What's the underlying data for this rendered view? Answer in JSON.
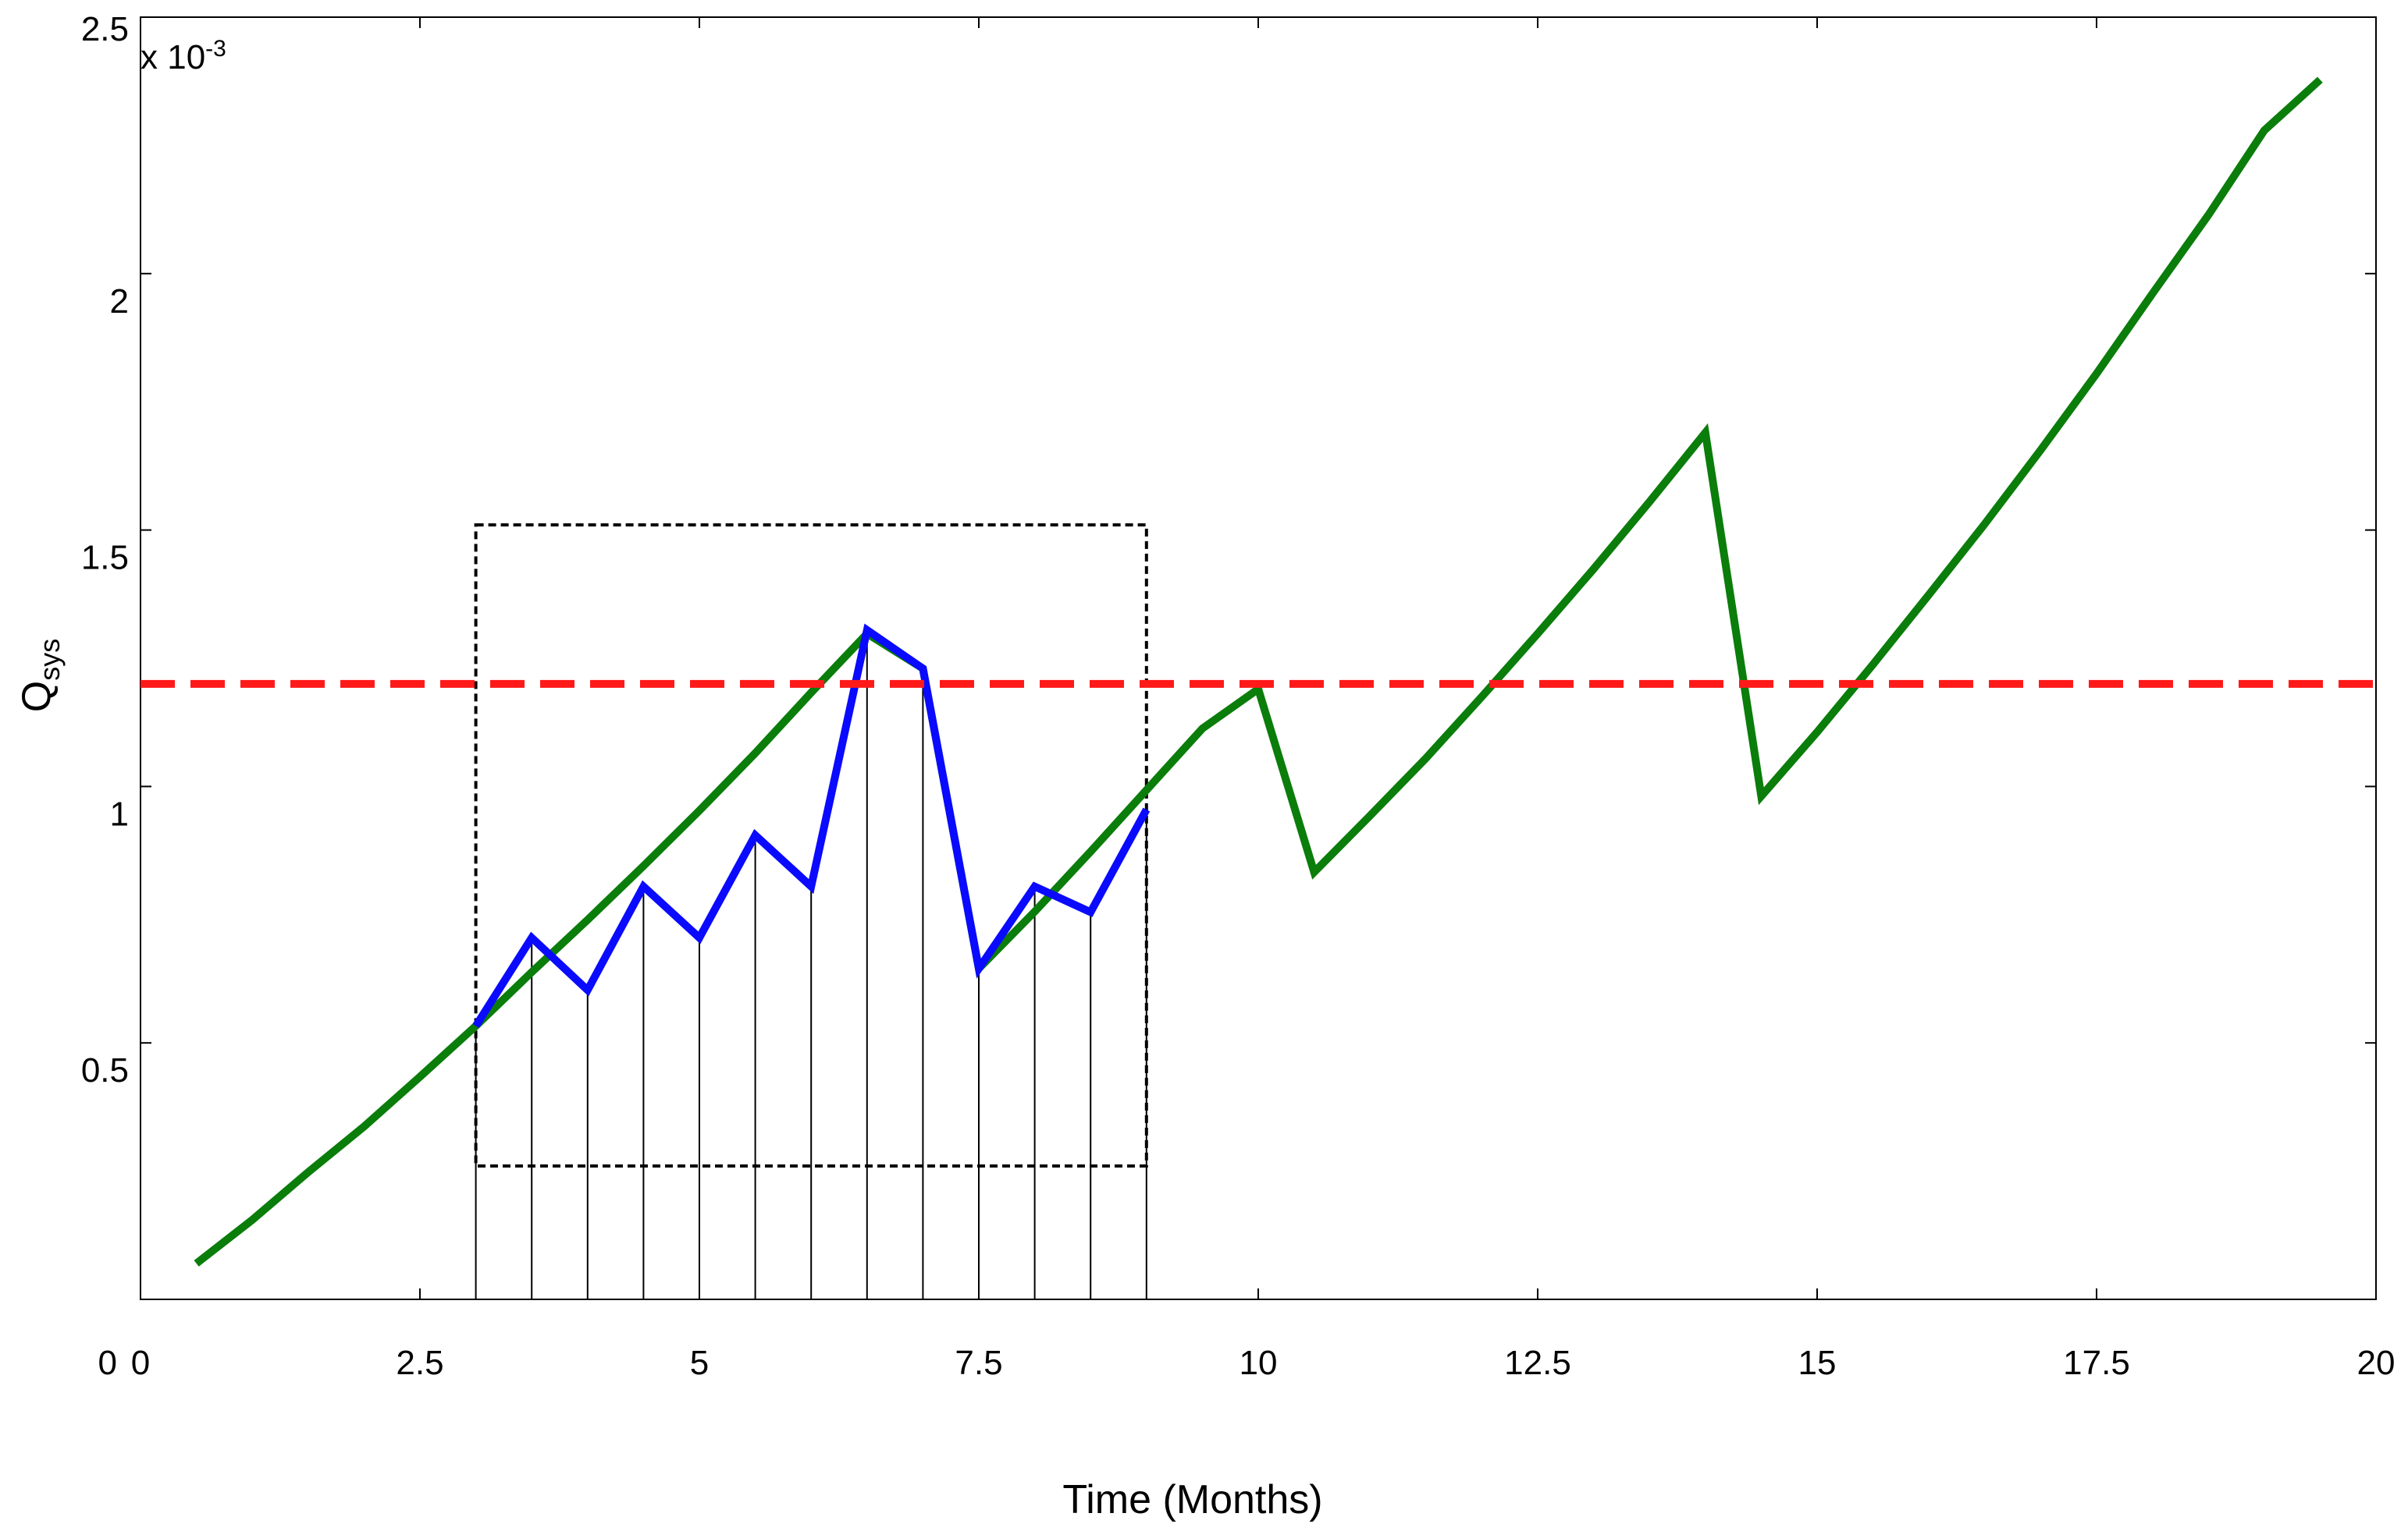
{
  "chart_data": {
    "type": "line",
    "xlabel": "Time (Months)",
    "ylabel": "Q",
    "ylabel_sub": "sys",
    "y_exponent_label": "x 10",
    "y_exponent_power": "-3",
    "xlim": [
      0,
      20
    ],
    "ylim": [
      0,
      0.0025
    ],
    "x_ticks": [
      0,
      2.5,
      5,
      7.5,
      10,
      12.5,
      15,
      17.5,
      20
    ],
    "x_tick_labels": [
      "0",
      "2.5",
      "5",
      "7.5",
      "10",
      "12.5",
      "15",
      "17.5",
      "20"
    ],
    "y_ticks": [
      0,
      0.0005,
      0.001,
      0.0015,
      0.002,
      0.0025
    ],
    "y_tick_labels": [
      "0",
      "0.5",
      "1",
      "1.5",
      "2",
      "2.5"
    ],
    "grid": false,
    "colors": {
      "green_series": "#0a7d0a",
      "blue_series": "#0a0aff",
      "threshold": "#ff1a1a",
      "box": "#000000",
      "stems": "#000000"
    },
    "series": [
      {
        "color_key": "green_series",
        "style": "solid",
        "x": [
          0.5,
          1,
          1.5,
          2,
          2.5,
          3,
          3.5,
          4,
          4.5,
          5,
          5.5,
          6,
          6.5,
          7,
          7.5,
          8,
          8.5,
          9,
          9.5,
          10,
          10.5,
          11,
          11.5,
          12,
          12.5,
          13,
          13.5,
          14,
          14.5,
          15,
          15.5,
          16,
          16.5,
          17,
          17.5,
          18,
          18.5,
          19,
          19.5
        ],
        "values": [
          7e-05,
          0.000155,
          0.000248,
          0.000337,
          0.000434,
          0.000533,
          0.000638,
          0.00074,
          0.000845,
          0.000953,
          0.001065,
          0.001183,
          0.001298,
          0.00123,
          0.000645,
          0.000756,
          0.000873,
          0.000993,
          0.001113,
          0.00119,
          0.000833,
          0.000943,
          0.001055,
          0.001175,
          0.001298,
          0.001424,
          0.001555,
          0.00169,
          0.000981,
          0.001106,
          0.001238,
          0.001374,
          0.001512,
          0.001656,
          0.001805,
          0.001961,
          0.002114,
          0.002279,
          0.002378
        ]
      },
      {
        "color_key": "blue_series",
        "style": "solid",
        "x": [
          3,
          3.5,
          4,
          4.5,
          5,
          5.5,
          6,
          6.5,
          7,
          7.5,
          8,
          8.5,
          9
        ],
        "values": [
          0.000533,
          0.000705,
          0.000603,
          0.000805,
          0.000705,
          0.000905,
          0.000805,
          0.001305,
          0.00123,
          0.000645,
          0.000805,
          0.000755,
          0.000955
        ]
      },
      {
        "color_key": "threshold",
        "style": "dashed",
        "x": [
          0,
          20
        ],
        "values": [
          0.0012,
          0.0012
        ]
      }
    ],
    "stems_x": [
      3,
      3.5,
      4,
      4.5,
      5,
      5.5,
      6,
      6.5,
      7,
      7.5,
      8,
      8.5,
      9
    ],
    "box": {
      "x0": 3,
      "x1": 9,
      "y0": 0.00026,
      "y1": 0.00151
    }
  }
}
